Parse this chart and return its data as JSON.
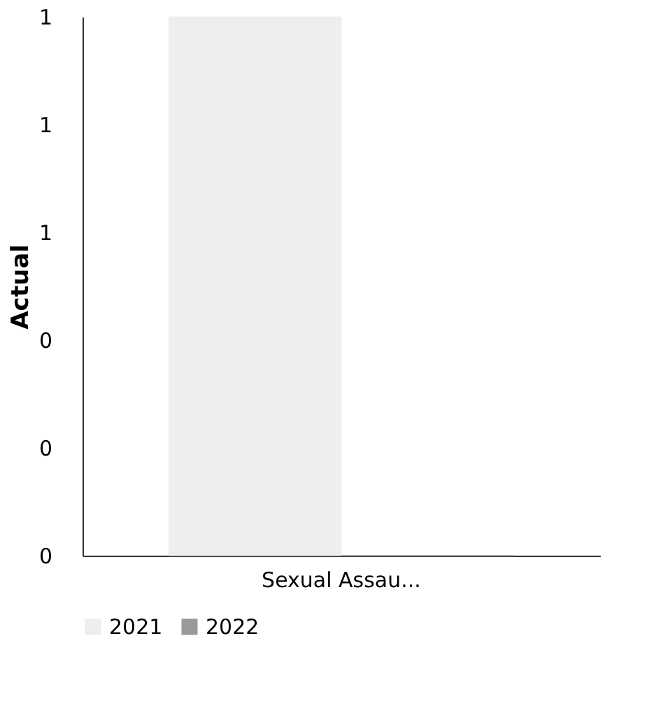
{
  "chart_data": {
    "type": "bar",
    "ylabel": "Actual",
    "categories": [
      "Sexual Assau..."
    ],
    "series": [
      {
        "name": "2021",
        "color": "#eeeeee",
        "values": [
          1
        ]
      },
      {
        "name": "2022",
        "color": "#9a9a9a",
        "values": [
          0
        ]
      }
    ],
    "ylim": [
      0,
      1
    ],
    "yticks": [
      {
        "value": 0,
        "label": "0"
      },
      {
        "value": 0.2,
        "label": "0"
      },
      {
        "value": 0.4,
        "label": "0"
      },
      {
        "value": 0.6,
        "label": "1"
      },
      {
        "value": 0.8,
        "label": "1"
      },
      {
        "value": 1,
        "label": "1"
      }
    ],
    "grid": false,
    "legend": "bottom"
  }
}
